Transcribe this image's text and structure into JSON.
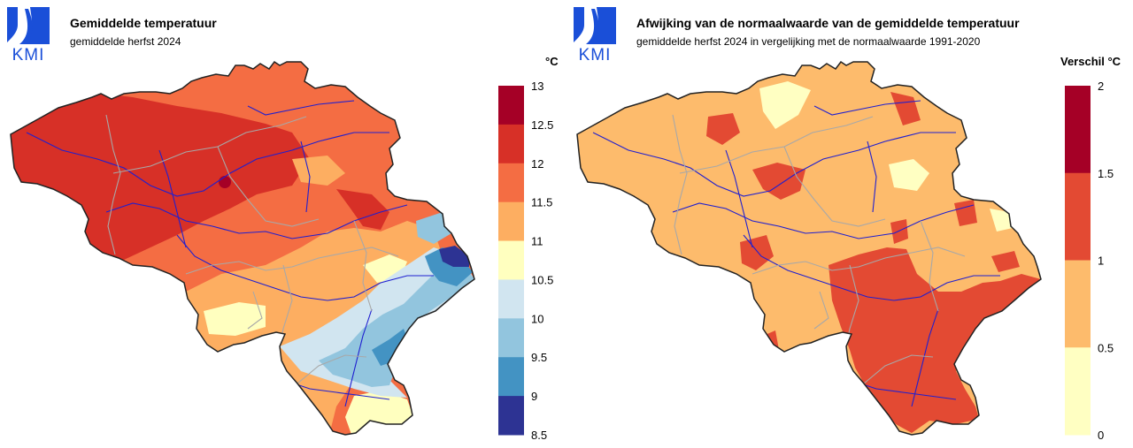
{
  "logo": {
    "text": "KMI",
    "brand_color": "#1a4fd8"
  },
  "left_map": {
    "title": "Gemiddelde temperatuur",
    "subtitle": "gemiddelde herfst 2024",
    "unit": "°C",
    "legend": {
      "ticks": [
        "13",
        "12.5",
        "12",
        "11.5",
        "11",
        "10.5",
        "10",
        "9.5",
        "9",
        "8.5"
      ],
      "colors": [
        "#a50026",
        "#d73027",
        "#f46d43",
        "#fdae61",
        "#ffffbf",
        "#d1e5f0",
        "#92c5de",
        "#4393c3",
        "#2d3393"
      ]
    }
  },
  "right_map": {
    "title": "Afwijking van de normaalwaarde van de gemiddelde temperatuur",
    "subtitle": "gemiddelde herfst 2024 in vergelijking met de normaalwaarde 1991-2020",
    "unit": "Verschil °C",
    "legend": {
      "ticks": [
        "2",
        "1.5",
        "1",
        "0.5",
        "0"
      ],
      "colors": [
        "#a50026",
        "#e34a33",
        "#fdbb6c",
        "#ffffc2"
      ]
    }
  }
}
